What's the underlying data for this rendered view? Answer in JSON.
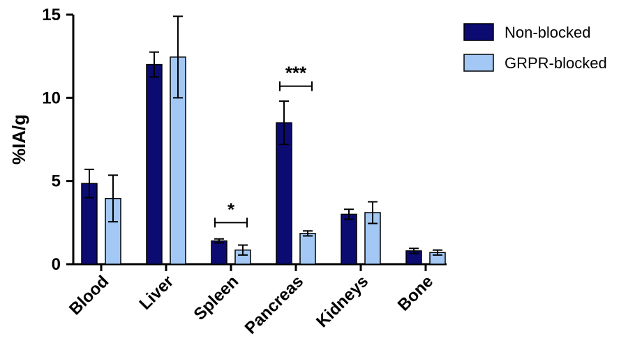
{
  "chart_data": {
    "type": "bar",
    "title": "",
    "xlabel": "",
    "ylabel": "%IA/g",
    "ylim": [
      0,
      15
    ],
    "yticks": [
      0,
      5,
      10,
      15
    ],
    "grid": false,
    "legend_position": "top-right",
    "categories": [
      "Blood",
      "Liver",
      "Spleen",
      "Pancreas",
      "Kidneys",
      "Bone"
    ],
    "series": [
      {
        "name": "Non-blocked",
        "color": "#0b0b72",
        "values": [
          4.85,
          12.0,
          1.4,
          8.5,
          3.0,
          0.8
        ],
        "error": [
          0.85,
          0.75,
          0.12,
          1.3,
          0.3,
          0.15
        ]
      },
      {
        "name": "GRPR-blocked",
        "color": "#a3c8f5",
        "values": [
          3.95,
          12.45,
          0.85,
          1.85,
          3.1,
          0.7
        ],
        "error": [
          1.4,
          2.45,
          0.3,
          0.15,
          0.65,
          0.15
        ]
      }
    ],
    "annotations": [
      {
        "category": "Spleen",
        "text": "*",
        "y": 2.5
      },
      {
        "category": "Pancreas",
        "text": "***",
        "y": 10.7
      }
    ]
  }
}
